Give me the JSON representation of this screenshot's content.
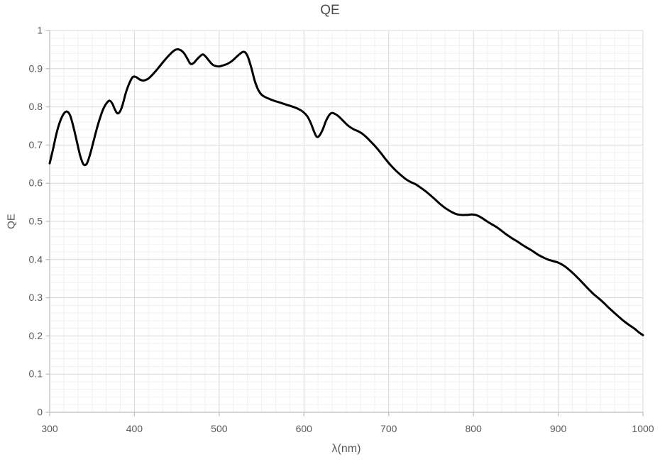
{
  "page": {
    "background": "#FFFFFF"
  },
  "chart_data": {
    "type": "line",
    "title": "QE",
    "xlabel": "λ(nm)",
    "ylabel": "QE",
    "xlim": [
      300,
      1000
    ],
    "ylim": [
      0,
      1
    ],
    "x_ticks": [
      300,
      400,
      500,
      600,
      700,
      800,
      900,
      1000
    ],
    "x_tick_labels": [
      "300",
      "400",
      "500",
      "600",
      "700",
      "800",
      "900",
      "1000"
    ],
    "y_ticks": [
      0,
      0.1,
      0.2,
      0.3,
      0.4,
      0.5,
      0.6,
      0.7,
      0.8,
      0.9,
      1
    ],
    "y_tick_labels": [
      "0",
      "0.1",
      "0.2",
      "0.3",
      "0.4",
      "0.5",
      "0.6",
      "0.7",
      "0.8",
      "0.9",
      "1"
    ],
    "x_minor_divisions_per_major": 6,
    "y_minor_divisions_per_major": 5,
    "grid": {
      "major": true,
      "minor": true
    },
    "legend": "none",
    "colors": {
      "curve": "#000000",
      "axis": "#BFBFBF",
      "major_grid": "#D9D9D9",
      "minor_grid": "#F1F1F1",
      "tick_text": "#595959",
      "title_text": "#4D4D4D"
    },
    "series": [
      {
        "name": "QE",
        "stroke_width": 3,
        "points": [
          [
            300,
            0.652
          ],
          [
            304,
            0.69
          ],
          [
            308,
            0.73
          ],
          [
            312,
            0.76
          ],
          [
            316,
            0.78
          ],
          [
            320,
            0.788
          ],
          [
            324,
            0.778
          ],
          [
            328,
            0.748
          ],
          [
            332,
            0.71
          ],
          [
            336,
            0.672
          ],
          [
            340,
            0.649
          ],
          [
            344,
            0.652
          ],
          [
            348,
            0.678
          ],
          [
            352,
            0.712
          ],
          [
            356,
            0.746
          ],
          [
            360,
            0.775
          ],
          [
            364,
            0.798
          ],
          [
            368,
            0.812
          ],
          [
            371,
            0.816
          ],
          [
            374,
            0.808
          ],
          [
            377,
            0.793
          ],
          [
            380,
            0.783
          ],
          [
            383,
            0.788
          ],
          [
            386,
            0.805
          ],
          [
            390,
            0.838
          ],
          [
            394,
            0.862
          ],
          [
            398,
            0.878
          ],
          [
            402,
            0.878
          ],
          [
            406,
            0.872
          ],
          [
            410,
            0.869
          ],
          [
            414,
            0.871
          ],
          [
            418,
            0.877
          ],
          [
            424,
            0.891
          ],
          [
            430,
            0.907
          ],
          [
            436,
            0.923
          ],
          [
            442,
            0.938
          ],
          [
            448,
            0.949
          ],
          [
            453,
            0.95
          ],
          [
            458,
            0.942
          ],
          [
            462,
            0.928
          ],
          [
            466,
            0.913
          ],
          [
            470,
            0.915
          ],
          [
            474,
            0.925
          ],
          [
            480,
            0.937
          ],
          [
            484,
            0.932
          ],
          [
            488,
            0.921
          ],
          [
            492,
            0.911
          ],
          [
            496,
            0.907
          ],
          [
            500,
            0.906
          ],
          [
            505,
            0.909
          ],
          [
            510,
            0.913
          ],
          [
            515,
            0.92
          ],
          [
            520,
            0.93
          ],
          [
            524,
            0.938
          ],
          [
            528,
            0.944
          ],
          [
            531,
            0.942
          ],
          [
            534,
            0.93
          ],
          [
            538,
            0.902
          ],
          [
            542,
            0.868
          ],
          [
            546,
            0.845
          ],
          [
            550,
            0.832
          ],
          [
            555,
            0.825
          ],
          [
            560,
            0.82
          ],
          [
            566,
            0.815
          ],
          [
            572,
            0.811
          ],
          [
            579,
            0.806
          ],
          [
            586,
            0.801
          ],
          [
            593,
            0.795
          ],
          [
            599,
            0.787
          ],
          [
            604,
            0.775
          ],
          [
            608,
            0.758
          ],
          [
            612,
            0.735
          ],
          [
            615,
            0.722
          ],
          [
            618,
            0.724
          ],
          [
            622,
            0.74
          ],
          [
            626,
            0.763
          ],
          [
            630,
            0.779
          ],
          [
            633,
            0.784
          ],
          [
            637,
            0.781
          ],
          [
            641,
            0.775
          ],
          [
            646,
            0.764
          ],
          [
            652,
            0.751
          ],
          [
            658,
            0.742
          ],
          [
            664,
            0.736
          ],
          [
            668,
            0.731
          ],
          [
            673,
            0.722
          ],
          [
            678,
            0.711
          ],
          [
            684,
            0.697
          ],
          [
            690,
            0.681
          ],
          [
            696,
            0.664
          ],
          [
            702,
            0.648
          ],
          [
            708,
            0.634
          ],
          [
            714,
            0.622
          ],
          [
            720,
            0.611
          ],
          [
            726,
            0.603
          ],
          [
            732,
            0.597
          ],
          [
            738,
            0.588
          ],
          [
            744,
            0.578
          ],
          [
            750,
            0.567
          ],
          [
            756,
            0.555
          ],
          [
            762,
            0.543
          ],
          [
            768,
            0.533
          ],
          [
            774,
            0.525
          ],
          [
            780,
            0.519
          ],
          [
            786,
            0.517
          ],
          [
            792,
            0.517
          ],
          [
            798,
            0.518
          ],
          [
            804,
            0.516
          ],
          [
            810,
            0.509
          ],
          [
            816,
            0.5
          ],
          [
            822,
            0.492
          ],
          [
            828,
            0.484
          ],
          [
            834,
            0.474
          ],
          [
            840,
            0.464
          ],
          [
            846,
            0.455
          ],
          [
            852,
            0.447
          ],
          [
            858,
            0.438
          ],
          [
            864,
            0.43
          ],
          [
            870,
            0.422
          ],
          [
            876,
            0.413
          ],
          [
            882,
            0.406
          ],
          [
            888,
            0.4
          ],
          [
            894,
            0.396
          ],
          [
            900,
            0.392
          ],
          [
            906,
            0.385
          ],
          [
            912,
            0.375
          ],
          [
            918,
            0.363
          ],
          [
            924,
            0.35
          ],
          [
            930,
            0.336
          ],
          [
            936,
            0.322
          ],
          [
            942,
            0.309
          ],
          [
            948,
            0.298
          ],
          [
            954,
            0.286
          ],
          [
            960,
            0.273
          ],
          [
            966,
            0.261
          ],
          [
            972,
            0.249
          ],
          [
            978,
            0.238
          ],
          [
            984,
            0.228
          ],
          [
            990,
            0.219
          ],
          [
            996,
            0.208
          ],
          [
            1000,
            0.202
          ]
        ]
      }
    ]
  }
}
